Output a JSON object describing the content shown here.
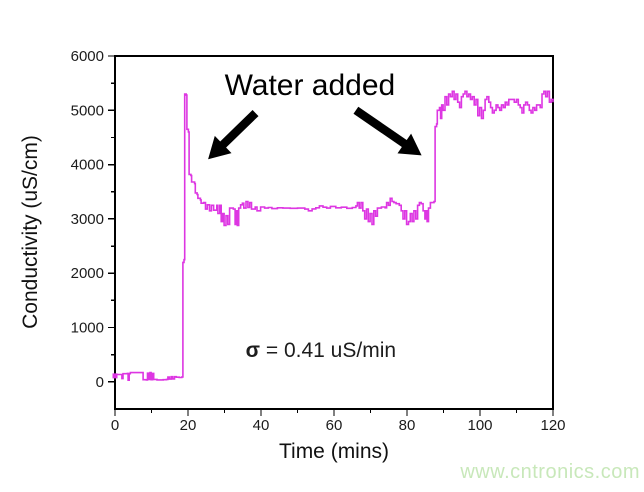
{
  "watermark": {
    "text": "www.cntronics.com",
    "color": "#c8e8ba"
  },
  "chart_data": {
    "type": "line",
    "title": "",
    "xlabel": "Time (mins)",
    "ylabel": "Conductivity (uS/cm)",
    "xlim": [
      0,
      120
    ],
    "ylim": [
      -500,
      6000
    ],
    "xticks": [
      0,
      20,
      40,
      60,
      80,
      100,
      120
    ],
    "yticks": [
      0,
      1000,
      2000,
      3000,
      4000,
      5000,
      6000
    ],
    "x_minor_step": 10,
    "y_minor_step": 500,
    "grid": false,
    "legend_position": "none",
    "line_color": "#dd36e2",
    "frame_color": "#000000",
    "tick_label_color": "#1c1c1c",
    "annotations": {
      "water_added": {
        "text": "Water added",
        "x_min": 53.4,
        "y_val": 5450
      },
      "sigma_label": {
        "symbol": "σ",
        "rest": " = 0.41 uS/min",
        "x_min": 56.4,
        "y_val": 560
      },
      "arrows": [
        {
          "from_x": 38.5,
          "from_y": 4950,
          "to_x": 25.5,
          "to_y": 4100
        },
        {
          "from_x": 66.0,
          "from_y": 5000,
          "to_x": 84.0,
          "to_y": 4170
        }
      ]
    },
    "series": [
      {
        "name": "conductivity",
        "points": [
          [
            0,
            110
          ],
          [
            0.4,
            135
          ],
          [
            1.6,
            135
          ],
          [
            1.9,
            60
          ],
          [
            2.2,
            150
          ],
          [
            3.4,
            155
          ],
          [
            3.6,
            30
          ],
          [
            3.9,
            150
          ],
          [
            4.2,
            170
          ],
          [
            7.4,
            170
          ],
          [
            7.7,
            40
          ],
          [
            8.6,
            35
          ],
          [
            8.9,
            160
          ],
          [
            9.2,
            45
          ],
          [
            9.6,
            170
          ],
          [
            9.9,
            40
          ],
          [
            10.3,
            155
          ],
          [
            10.6,
            45
          ],
          [
            11.5,
            35
          ],
          [
            13.2,
            40
          ],
          [
            14.1,
            45
          ],
          [
            14.5,
            90
          ],
          [
            14.9,
            50
          ],
          [
            15.4,
            95
          ],
          [
            15.8,
            55
          ],
          [
            16.3,
            95
          ],
          [
            16.8,
            85
          ],
          [
            17.6,
            80
          ],
          [
            18.3,
            90
          ],
          [
            18.6,
            2200
          ],
          [
            18.9,
            2250
          ],
          [
            19.1,
            5300
          ],
          [
            19.5,
            5280
          ],
          [
            19.7,
            4650
          ],
          [
            20.1,
            4600
          ],
          [
            20.3,
            3820
          ],
          [
            20.8,
            3800
          ],
          [
            21.0,
            3680
          ],
          [
            21.8,
            3650
          ],
          [
            22.0,
            3480
          ],
          [
            22.5,
            3450
          ],
          [
            22.7,
            3380
          ],
          [
            23.4,
            3350
          ],
          [
            23.6,
            3290
          ],
          [
            24.3,
            3300
          ],
          [
            24.8,
            3180
          ],
          [
            25.3,
            3260
          ],
          [
            25.9,
            3150
          ],
          [
            26.4,
            3250
          ],
          [
            27.0,
            3160
          ],
          [
            27.9,
            3250
          ],
          [
            28.2,
            3100
          ],
          [
            28.7,
            3250
          ],
          [
            29.1,
            2950
          ],
          [
            29.5,
            3100
          ],
          [
            29.9,
            2880
          ],
          [
            30.4,
            3060
          ],
          [
            30.9,
            2900
          ],
          [
            31.4,
            3200
          ],
          [
            32.4,
            3180
          ],
          [
            32.9,
            2900
          ],
          [
            33.2,
            3150
          ],
          [
            33.5,
            2880
          ],
          [
            33.9,
            3200
          ],
          [
            34.4,
            3260
          ],
          [
            34.9,
            3290
          ],
          [
            35.3,
            3200
          ],
          [
            35.9,
            3320
          ],
          [
            36.4,
            3210
          ],
          [
            36.9,
            3300
          ],
          [
            37.4,
            3180
          ],
          [
            38.4,
            3220
          ],
          [
            38.9,
            3150
          ],
          [
            39.9,
            3220
          ],
          [
            41,
            3200
          ],
          [
            42,
            3210
          ],
          [
            43,
            3190
          ],
          [
            44.5,
            3205
          ],
          [
            46,
            3200
          ],
          [
            48,
            3195
          ],
          [
            50,
            3200
          ],
          [
            52,
            3180
          ],
          [
            53,
            3150
          ],
          [
            54,
            3185
          ],
          [
            55,
            3205
          ],
          [
            56,
            3240
          ],
          [
            57,
            3215
          ],
          [
            58,
            3200
          ],
          [
            59,
            3230
          ],
          [
            60.5,
            3205
          ],
          [
            62,
            3215
          ],
          [
            63.5,
            3195
          ],
          [
            65,
            3210
          ],
          [
            66,
            3240
          ],
          [
            66.4,
            3300
          ],
          [
            66.9,
            3200
          ],
          [
            67.4,
            3300
          ],
          [
            67.9,
            3150
          ],
          [
            68.4,
            3000
          ],
          [
            68.9,
            3180
          ],
          [
            69.4,
            2950
          ],
          [
            69.9,
            3100
          ],
          [
            70.4,
            2900
          ],
          [
            70.9,
            3150
          ],
          [
            71.4,
            3050
          ],
          [
            71.9,
            3200
          ],
          [
            73,
            3220
          ],
          [
            74,
            3205
          ],
          [
            74.4,
            3300
          ],
          [
            74.9,
            3250
          ],
          [
            75.4,
            3380
          ],
          [
            75.9,
            3320
          ],
          [
            76.4,
            3300
          ],
          [
            77,
            3280
          ],
          [
            77.9,
            3250
          ],
          [
            78.4,
            3150
          ],
          [
            78.9,
            3000
          ],
          [
            79.4,
            3150
          ],
          [
            79.9,
            2900
          ],
          [
            80.4,
            2950
          ],
          [
            80.9,
            3100
          ],
          [
            81.4,
            2950
          ],
          [
            81.9,
            3150
          ],
          [
            82.4,
            3000
          ],
          [
            82.9,
            3250
          ],
          [
            83.4,
            3300
          ],
          [
            83.9,
            3280
          ],
          [
            84.4,
            3150
          ],
          [
            84.9,
            3000
          ],
          [
            85.2,
            3150
          ],
          [
            85.5,
            2950
          ],
          [
            85.9,
            3200
          ],
          [
            86.4,
            3300
          ],
          [
            87.4,
            3320
          ],
          [
            87.7,
            4700
          ],
          [
            88.1,
            4750
          ],
          [
            88.3,
            5000
          ],
          [
            88.9,
            5050
          ],
          [
            89.2,
            4850
          ],
          [
            89.5,
            5100
          ],
          [
            89.9,
            5000
          ],
          [
            90.4,
            5250
          ],
          [
            90.9,
            5100
          ],
          [
            91.4,
            5300
          ],
          [
            91.9,
            5250
          ],
          [
            92.4,
            5350
          ],
          [
            92.9,
            5200
          ],
          [
            93.4,
            5300
          ],
          [
            93.9,
            5150
          ],
          [
            94.4,
            5050
          ],
          [
            94.9,
            5250
          ],
          [
            95.4,
            5300
          ],
          [
            95.9,
            5350
          ],
          [
            96.4,
            5250
          ],
          [
            96.9,
            5300
          ],
          [
            97.4,
            5200
          ],
          [
            97.9,
            5250
          ],
          [
            98.4,
            5100
          ],
          [
            98.9,
            5200
          ],
          [
            99.4,
            4900
          ],
          [
            99.9,
            5050
          ],
          [
            100.4,
            4850
          ],
          [
            100.9,
            5000
          ],
          [
            101.4,
            5200
          ],
          [
            101.9,
            5250
          ],
          [
            102.4,
            5150
          ],
          [
            102.9,
            5050
          ],
          [
            103.4,
            4950
          ],
          [
            103.9,
            5000
          ],
          [
            104.4,
            5100
          ],
          [
            104.9,
            5050
          ],
          [
            105.4,
            5000
          ],
          [
            105.9,
            5100
          ],
          [
            106.4,
            5050
          ],
          [
            106.9,
            5150
          ],
          [
            107.4,
            5100
          ],
          [
            107.9,
            5200
          ],
          [
            108.9,
            5200
          ],
          [
            109.4,
            5150
          ],
          [
            110,
            5200
          ],
          [
            110.5,
            5100
          ],
          [
            111,
            5050
          ],
          [
            111.5,
            4950
          ],
          [
            112,
            5100
          ],
          [
            112.5,
            5150
          ],
          [
            113,
            5100
          ],
          [
            113.5,
            5000
          ],
          [
            114,
            4950
          ],
          [
            114.5,
            5050
          ],
          [
            115,
            5000
          ],
          [
            115.5,
            5100
          ],
          [
            116.5,
            5050
          ],
          [
            117,
            5300
          ],
          [
            117.5,
            5350
          ],
          [
            118,
            5250
          ],
          [
            118.5,
            5350
          ],
          [
            119,
            5150
          ],
          [
            119.5,
            5200
          ],
          [
            120,
            5150
          ]
        ]
      }
    ]
  }
}
